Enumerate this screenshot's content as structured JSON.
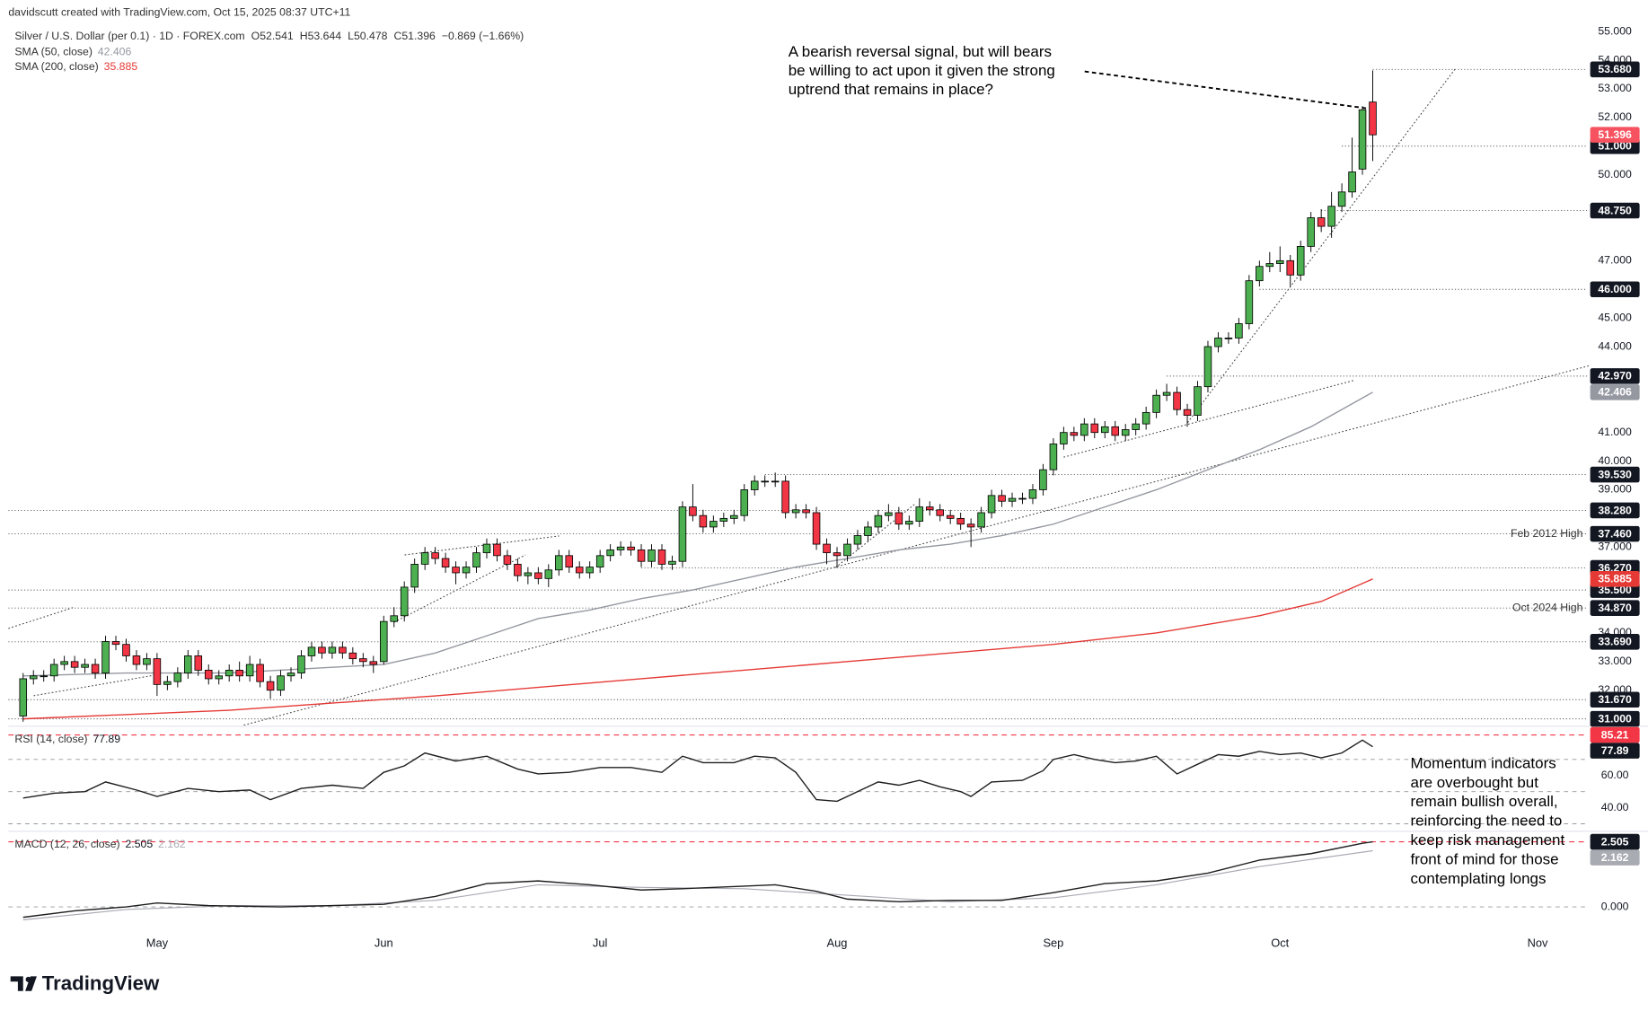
{
  "header": {
    "credit": "davidscutt created with TradingView.com, Oct 15, 2025 08:37 UTC+11"
  },
  "chart_data": [
    {
      "type": "candlestick",
      "title": "Silver / U.S. Dollar (per 0.1) · 1D · FOREX.com",
      "ohlc_labels": [
        "O52.541",
        "H53.644",
        "L50.478",
        "C51.396"
      ],
      "change_label": "−0.869 (−1.66%)",
      "up_color": "#4caf50",
      "down_color": "#f23645",
      "last_color": "#f7525f",
      "open": [
        31.1,
        32.4,
        32.5,
        32.5,
        32.9,
        33.0,
        32.8,
        32.9,
        32.6,
        33.7,
        33.6,
        33.2,
        32.9,
        33.1,
        32.2,
        32.3,
        32.6,
        33.2,
        32.7,
        32.4,
        32.5,
        32.7,
        32.5,
        32.9,
        32.3,
        32.0,
        32.5,
        32.6,
        33.2,
        33.5,
        33.3,
        33.5,
        33.3,
        33.1,
        33.0,
        33.0,
        34.4,
        34.6,
        35.6,
        36.4,
        36.8,
        36.6,
        36.3,
        36.1,
        36.3,
        36.8,
        37.1,
        36.7,
        36.4,
        36.0,
        36.1,
        35.9,
        36.2,
        36.7,
        36.3,
        36.1,
        36.3,
        36.7,
        36.9,
        37.0,
        36.9,
        36.5,
        36.9,
        36.4,
        36.5,
        38.4,
        38.1,
        37.7,
        37.9,
        38.0,
        38.1,
        39.0,
        39.3,
        39.3,
        39.3,
        38.2,
        38.3,
        38.2,
        37.1,
        36.8,
        36.7,
        37.1,
        37.4,
        37.7,
        38.1,
        38.2,
        37.8,
        37.9,
        38.4,
        38.3,
        38.1,
        38.0,
        37.8,
        37.7,
        38.2,
        38.8,
        38.6,
        38.7,
        38.7,
        39.0,
        39.7,
        40.6,
        41.0,
        40.9,
        41.3,
        41.0,
        41.2,
        40.9,
        41.1,
        41.3,
        41.7,
        42.3,
        42.4,
        41.8,
        41.6,
        42.6,
        44.0,
        44.3,
        44.3,
        44.8,
        46.3,
        46.8,
        46.9,
        47.0,
        46.5,
        47.5,
        48.5,
        48.2,
        48.9,
        49.4,
        50.2,
        52.541
      ],
      "high": [
        32.6,
        32.7,
        32.7,
        33.1,
        33.2,
        33.2,
        33.1,
        33.1,
        33.9,
        33.9,
        33.8,
        33.4,
        33.3,
        33.3,
        32.5,
        32.8,
        33.4,
        33.4,
        32.9,
        32.7,
        32.9,
        33.0,
        33.2,
        33.1,
        32.5,
        32.7,
        32.8,
        33.4,
        33.7,
        33.7,
        33.7,
        33.7,
        33.5,
        33.3,
        33.2,
        34.6,
        34.9,
        35.8,
        36.6,
        37.0,
        37.0,
        36.8,
        36.5,
        36.5,
        37.0,
        37.3,
        37.3,
        36.9,
        36.6,
        36.3,
        36.3,
        36.4,
        36.9,
        36.9,
        36.5,
        36.5,
        36.9,
        37.1,
        37.2,
        37.2,
        37.1,
        37.1,
        37.1,
        36.7,
        38.6,
        39.2,
        38.3,
        38.1,
        38.2,
        38.3,
        39.2,
        39.5,
        39.5,
        39.6,
        39.5,
        38.5,
        38.5,
        38.4,
        37.3,
        37.0,
        37.3,
        37.6,
        37.9,
        38.3,
        38.5,
        38.4,
        38.1,
        38.7,
        38.6,
        38.5,
        38.3,
        38.2,
        38.0,
        38.4,
        39.0,
        39.0,
        38.9,
        38.9,
        39.2,
        39.9,
        40.8,
        41.2,
        41.2,
        41.5,
        41.5,
        41.4,
        41.4,
        41.3,
        41.5,
        41.9,
        42.5,
        42.7,
        42.6,
        42.0,
        42.8,
        44.2,
        44.5,
        44.5,
        45.0,
        46.5,
        47.0,
        47.3,
        47.5,
        47.2,
        47.7,
        48.7,
        48.8,
        49.4,
        49.7,
        51.3,
        52.4,
        53.644
      ],
      "low": [
        30.9,
        32.2,
        32.3,
        32.3,
        32.7,
        32.6,
        32.6,
        32.4,
        32.4,
        33.4,
        33.0,
        32.7,
        32.7,
        31.8,
        32.0,
        32.1,
        32.4,
        32.5,
        32.2,
        32.2,
        32.3,
        32.3,
        32.3,
        32.1,
        31.7,
        31.8,
        32.3,
        32.4,
        33.0,
        33.1,
        33.1,
        33.1,
        32.9,
        32.8,
        32.6,
        32.9,
        34.2,
        34.4,
        35.4,
        36.2,
        36.4,
        36.1,
        35.7,
        35.9,
        36.1,
        36.6,
        36.5,
        36.2,
        35.8,
        35.7,
        35.7,
        35.6,
        36.0,
        36.1,
        35.9,
        35.9,
        36.1,
        36.5,
        36.7,
        36.7,
        36.3,
        36.3,
        36.2,
        36.2,
        36.3,
        37.9,
        37.5,
        37.5,
        37.7,
        37.8,
        37.9,
        38.8,
        39.1,
        39.1,
        38.0,
        38.0,
        38.0,
        36.9,
        36.4,
        36.3,
        36.5,
        36.9,
        37.2,
        37.5,
        37.9,
        37.6,
        37.6,
        37.7,
        38.1,
        37.9,
        37.8,
        37.6,
        37.0,
        37.5,
        38.0,
        38.4,
        38.4,
        38.5,
        38.5,
        38.8,
        39.5,
        40.4,
        40.7,
        40.7,
        40.8,
        40.8,
        40.7,
        40.7,
        40.9,
        41.1,
        41.5,
        42.1,
        41.6,
        41.2,
        41.4,
        42.4,
        43.8,
        44.1,
        44.1,
        44.6,
        46.1,
        46.6,
        46.6,
        46.1,
        46.3,
        47.3,
        48.0,
        47.8,
        48.7,
        49.2,
        50.0,
        50.478
      ],
      "close": [
        32.4,
        32.5,
        32.5,
        32.9,
        33.0,
        32.8,
        32.9,
        32.6,
        33.7,
        33.6,
        33.2,
        32.9,
        33.1,
        32.2,
        32.3,
        32.6,
        33.2,
        32.7,
        32.4,
        32.5,
        32.7,
        32.5,
        32.9,
        32.3,
        32.0,
        32.5,
        32.6,
        33.2,
        33.5,
        33.3,
        33.5,
        33.3,
        33.1,
        33.0,
        32.9,
        34.4,
        34.6,
        35.6,
        36.4,
        36.8,
        36.6,
        36.3,
        36.1,
        36.3,
        36.8,
        37.1,
        36.7,
        36.4,
        36.0,
        36.1,
        35.9,
        36.2,
        36.7,
        36.3,
        36.1,
        36.3,
        36.7,
        36.9,
        37.0,
        36.9,
        36.5,
        36.9,
        36.4,
        36.5,
        38.4,
        38.1,
        37.7,
        37.9,
        38.0,
        38.1,
        39.0,
        39.3,
        39.3,
        39.3,
        38.2,
        38.3,
        38.2,
        37.1,
        36.8,
        36.7,
        37.1,
        37.4,
        37.7,
        38.1,
        38.2,
        37.8,
        37.9,
        38.4,
        38.3,
        38.1,
        38.0,
        37.8,
        37.7,
        38.2,
        38.8,
        38.6,
        38.7,
        38.7,
        39.0,
        39.7,
        40.6,
        41.0,
        40.9,
        41.3,
        41.0,
        41.2,
        40.9,
        41.1,
        41.3,
        41.7,
        42.3,
        42.4,
        41.8,
        41.6,
        42.6,
        44.0,
        44.3,
        44.3,
        44.8,
        46.3,
        46.8,
        46.9,
        47.0,
        46.5,
        47.5,
        48.5,
        48.2,
        48.9,
        49.4,
        50.1,
        52.27,
        51.396
      ],
      "overlays": [
        {
          "name": "SMA (50, close)",
          "color": "#9598a1",
          "x": [
            0,
            10,
            20,
            30,
            35,
            40,
            45,
            50,
            55,
            60,
            65,
            70,
            75,
            80,
            85,
            90,
            95,
            100,
            105,
            110,
            115,
            120,
            125,
            131
          ],
          "values": [
            32.5,
            32.6,
            32.6,
            32.8,
            32.9,
            33.3,
            33.9,
            34.5,
            34.8,
            35.2,
            35.5,
            35.9,
            36.3,
            36.6,
            36.9,
            37.1,
            37.4,
            37.8,
            38.4,
            39.0,
            39.7,
            40.4,
            41.2,
            42.406
          ]
        },
        {
          "name": "SMA (200, close)",
          "color": "#e53935",
          "x": [
            0,
            20,
            40,
            60,
            80,
            100,
            110,
            120,
            126,
            131
          ],
          "values": [
            31.0,
            31.3,
            31.8,
            32.4,
            33.0,
            33.6,
            34.0,
            34.6,
            35.1,
            35.885
          ]
        }
      ],
      "levels": [
        {
          "value": 53.68,
          "label": "53.680",
          "start": 131
        },
        {
          "value": 51,
          "label": "51.000",
          "start": 128
        },
        {
          "value": 48.75,
          "label": "48.750",
          "start": 126
        },
        {
          "value": 46,
          "label": "46.000",
          "start": 120
        },
        {
          "value": 42.97,
          "label": "42.970",
          "start": 111
        },
        {
          "value": 39.53,
          "label": "39.530",
          "start": 72
        },
        {
          "value": 38.28,
          "label": "38.280"
        },
        {
          "value": 37.46,
          "label": "37.460",
          "note": "Feb 2012 High"
        },
        {
          "value": 36.27,
          "label": "36.270",
          "start": 60
        },
        {
          "value": 35.5,
          "label": "35.500"
        },
        {
          "value": 34.87,
          "label": "34.870",
          "note": "Oct 2024 High"
        },
        {
          "value": 33.69,
          "label": "33.690"
        },
        {
          "value": 31.67,
          "label": "31.670"
        },
        {
          "value": 31,
          "label": "31.000"
        }
      ],
      "annotation": [
        "A bearish reversal signal, but will bears",
        "be willing to act upon it given the strong",
        "uptrend that remains in place?"
      ],
      "xlim": [
        -1.43,
        151.8
      ],
      "xticks": [
        {
          "value": 13,
          "label": "May"
        },
        {
          "value": 35,
          "label": "Jun"
        },
        {
          "value": 56,
          "label": "Jul"
        },
        {
          "value": 79,
          "label": "Aug"
        },
        {
          "value": 100,
          "label": "Sep"
        },
        {
          "value": 122,
          "label": "Oct"
        },
        {
          "value": 147,
          "label": "Nov"
        }
      ],
      "ylim": [
        30.78,
        55.37
      ],
      "yticks": [
        {
          "value": 55,
          "label": "55.000"
        },
        {
          "value": 54,
          "label": "54.000"
        },
        {
          "value": 53,
          "label": "53.000"
        },
        {
          "value": 52,
          "label": "52.000"
        },
        {
          "value": 50,
          "label": "50.000"
        },
        {
          "value": 47,
          "label": "47.000"
        },
        {
          "value": 45,
          "label": "45.000"
        },
        {
          "value": 44,
          "label": "44.000"
        },
        {
          "value": 41,
          "label": "41.000"
        },
        {
          "value": 40,
          "label": "40.000"
        },
        {
          "value": 39,
          "label": "39.000"
        },
        {
          "value": 37,
          "label": "37.000"
        },
        {
          "value": 34,
          "label": "34.000"
        },
        {
          "value": 33,
          "label": "33.000"
        },
        {
          "value": 32,
          "label": "32.000"
        }
      ]
    },
    {
      "type": "line",
      "series": [
        {
          "name": "RSI (14, close)",
          "color": "#1e1e1e",
          "x": [
            0,
            3,
            6,
            8,
            11,
            13,
            16,
            19,
            22,
            24,
            27,
            30,
            33,
            35,
            37,
            39,
            42,
            45,
            48,
            50,
            53,
            56,
            59,
            62,
            64,
            66,
            69,
            71,
            73,
            75,
            77,
            79,
            81,
            83,
            85,
            87,
            89,
            91,
            92,
            94,
            97,
            99,
            100,
            102,
            104,
            106,
            108,
            110,
            112,
            114,
            116,
            118,
            120,
            122,
            124,
            126,
            128,
            130,
            131
          ],
          "values": [
            46,
            49,
            50,
            56,
            51,
            47,
            52,
            50,
            51,
            45,
            52,
            54,
            52,
            62,
            66,
            74,
            69,
            72,
            64,
            61,
            62,
            65,
            65,
            62,
            72,
            68,
            68,
            72,
            71,
            62,
            45,
            44,
            50,
            56,
            54,
            57,
            53,
            50,
            47,
            56,
            57,
            63,
            70,
            73,
            70,
            68,
            69,
            72,
            61,
            67,
            73,
            72,
            75,
            73,
            74,
            71,
            74,
            82,
            77.89
          ]
        }
      ],
      "high": 85.21,
      "high_color": "#f23645",
      "levels": [
        70,
        50,
        30
      ],
      "ylim": [
        26,
        90
      ],
      "yticks": [
        {
          "value": 60,
          "label": "60.00"
        },
        {
          "value": 40,
          "label": "40.00"
        }
      ]
    },
    {
      "type": "line",
      "series": [
        {
          "name": "MACD (12, 26, close)",
          "color": "#1e1e1e",
          "x": [
            0,
            5,
            10,
            13,
            18,
            25,
            30,
            35,
            40,
            45,
            50,
            55,
            60,
            64,
            70,
            73,
            77,
            80,
            85,
            90,
            95,
            100,
            105,
            110,
            115,
            120,
            125,
            130,
            131
          ],
          "values": [
            -0.4,
            -0.15,
            0.0,
            0.15,
            0.05,
            0.0,
            0.05,
            0.1,
            0.4,
            0.9,
            1.0,
            0.85,
            0.65,
            0.7,
            0.8,
            0.85,
            0.6,
            0.3,
            0.2,
            0.25,
            0.25,
            0.55,
            0.9,
            1.0,
            1.3,
            1.8,
            2.05,
            2.45,
            2.505
          ]
        },
        {
          "color": "#a9abb3",
          "x": [
            0,
            10,
            20,
            30,
            40,
            50,
            60,
            70,
            80,
            90,
            100,
            110,
            120,
            131
          ],
          "values": [
            -0.5,
            -0.1,
            0.05,
            0.05,
            0.25,
            0.85,
            0.75,
            0.7,
            0.45,
            0.2,
            0.35,
            0.85,
            1.55,
            2.162
          ]
        }
      ],
      "high_color": "#f23645",
      "levels": [
        0
      ],
      "ylim": [
        -0.69,
        2.87
      ],
      "yticks": [
        {
          "value": 0,
          "label": "0.000"
        }
      ],
      "annotation": [
        "Momentum indicators",
        "are overbought but",
        "remain bullish overall,",
        "reinforcing the need to",
        "keep risk management",
        "front of mind for those",
        "contemplating longs"
      ]
    }
  ],
  "footer": {
    "brand": "TradingView"
  }
}
